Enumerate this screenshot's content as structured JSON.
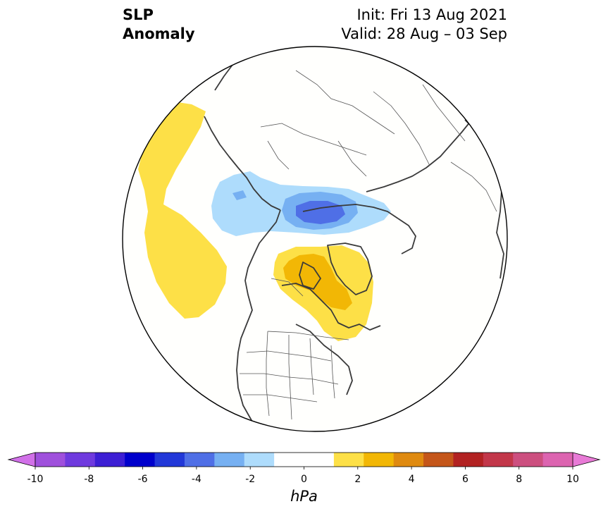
{
  "title": {
    "left_line1": "SLP",
    "left_line2": "Anomaly",
    "init": "Init: Fri 13 Aug 2021",
    "valid": "Valid: 28 Aug – 03 Sep"
  },
  "colorbar": {
    "unit": "hPa",
    "ticks": [
      "-10",
      "-8",
      "-6",
      "-4",
      "-2",
      "0",
      "2",
      "4",
      "6",
      "8",
      "10"
    ],
    "colors": [
      "#d170e8",
      "#9f50dc",
      "#6f3ade",
      "#3d1fd4",
      "#0000cc",
      "#2238d8",
      "#4f6fe6",
      "#76b0f2",
      "#aedcfc",
      "#ffffff",
      "#ffffff",
      "#fde047",
      "#f2b705",
      "#df8a10",
      "#c4561a",
      "#b22222",
      "#c2374a",
      "#cc4f7f",
      "#dc64b0",
      "#e87ad6"
    ]
  },
  "map": {
    "projection": "north-polar-stereographic",
    "anomalies": [
      {
        "name": "positive-anomaly-north-pacific",
        "level": "1-2 hPa",
        "color": "#fde047"
      },
      {
        "name": "negative-anomaly-arctic",
        "level": "-1 to -3 hPa",
        "color": "#aedcfc"
      },
      {
        "name": "negative-anomaly-arctic-core",
        "level": "-3 to -5 hPa",
        "color": "#4f6fe6"
      },
      {
        "name": "positive-anomaly-hudson-bay",
        "level": "1-3 hPa",
        "color": "#fde047"
      },
      {
        "name": "positive-anomaly-hudson-bay-core",
        "level": "2-3 hPa",
        "color": "#f2b705"
      }
    ]
  }
}
